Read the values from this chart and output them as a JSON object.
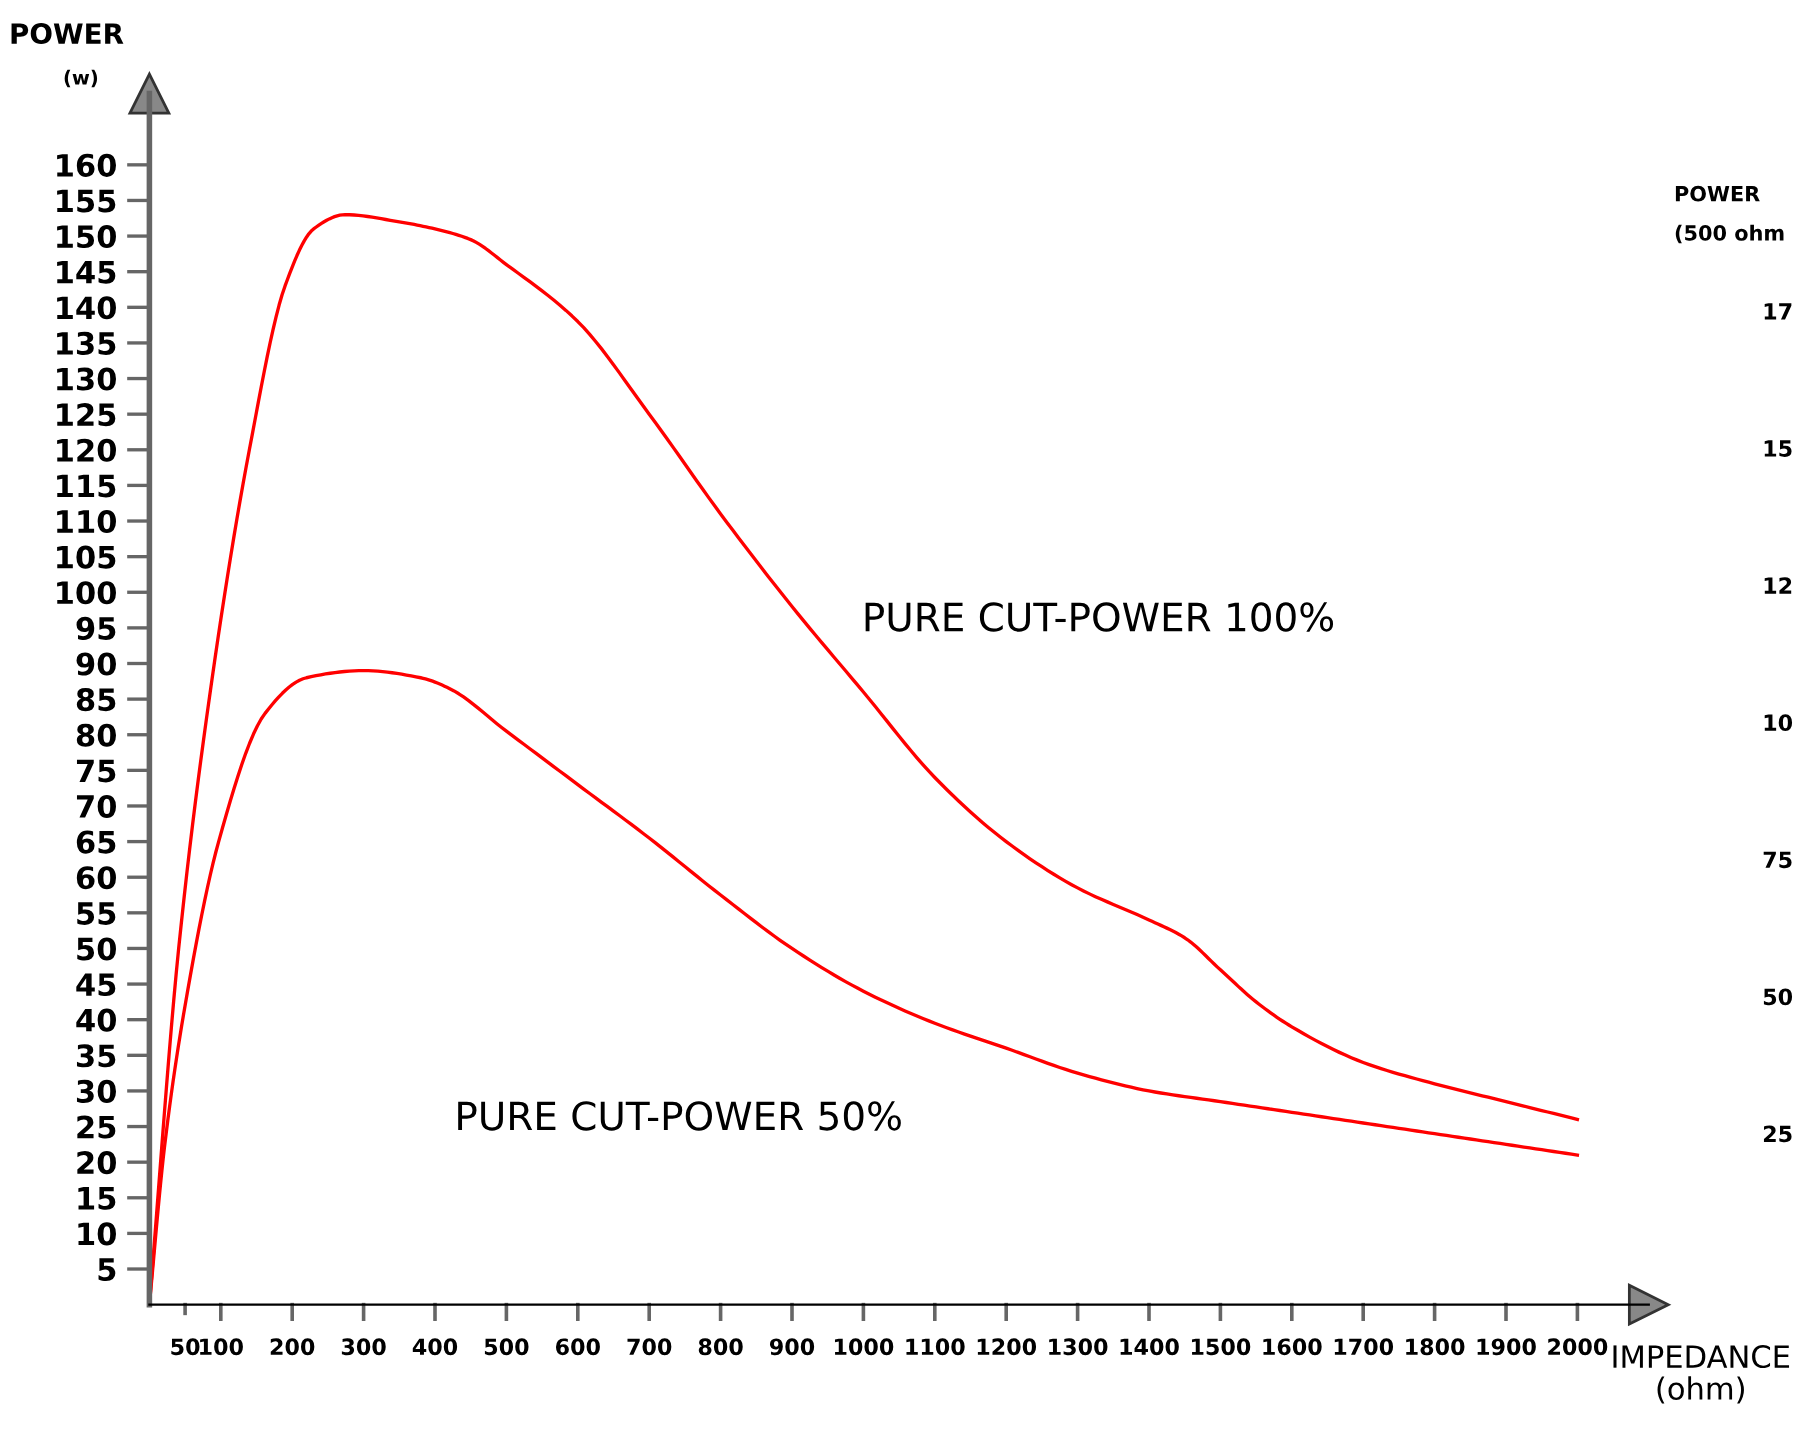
{
  "chart_data": [
    {
      "type": "line",
      "xlabel": "IMPEDANCE\n(ohm)",
      "ylabel": "POWER\n(w)",
      "xlim": [
        0,
        2100
      ],
      "ylim": [
        0,
        170
      ],
      "xticks": [
        50,
        100,
        200,
        300,
        400,
        500,
        600,
        700,
        800,
        900,
        1000,
        1100,
        1200,
        1300,
        1400,
        1500,
        1600,
        1700,
        1800,
        1900,
        2000
      ],
      "yticks": [
        5,
        10,
        15,
        20,
        25,
        30,
        35,
        40,
        45,
        50,
        55,
        60,
        65,
        70,
        75,
        80,
        85,
        90,
        95,
        100,
        105,
        110,
        115,
        120,
        125,
        130,
        135,
        140,
        145,
        150,
        155,
        160
      ],
      "grid": false,
      "legend": false,
      "marker": "none",
      "line_style": "solid",
      "series": [
        {
          "color": "#ff0000",
          "x": [
            0,
            41,
            88,
            140,
            190,
            230,
            274,
            350,
            400,
            450,
            500,
            600,
            700,
            800,
            900,
            1000,
            1100,
            1200,
            1300,
            1400,
            1450,
            1500,
            1550,
            1600,
            1700,
            1800,
            1900,
            2000
          ],
          "values": [
            0,
            50,
            88,
            120,
            143,
            151,
            153,
            152,
            151,
            149.5,
            146,
            138,
            125,
            111,
            98,
            86,
            74,
            65,
            58.5,
            54,
            51.5,
            47,
            42.5,
            39,
            34,
            31,
            28.5,
            26
          ]
        },
        {
          "color": "#ff0000",
          "x": [
            0,
            21,
            50,
            97,
            162,
            220,
            300,
            380,
            420,
            500,
            600,
            700,
            800,
            900,
            1000,
            1100,
            1200,
            1300,
            1400,
            1500,
            1600,
            1700,
            1800,
            1900,
            2000
          ],
          "values": [
            0,
            22,
            42,
            65,
            83,
            88,
            89,
            88,
            86.5,
            80.5,
            73,
            65.5,
            57.5,
            50,
            44,
            39.5,
            36,
            32.5,
            30,
            28.5,
            27,
            25.5,
            24,
            22.5,
            21
          ]
        }
      ],
      "annotations": [
        "PURE CUT-POWER 100%",
        "PURE CUT-POWER 50%"
      ]
    },
    {
      "type": "other",
      "ylabel": "POWER\n(500 ohm",
      "annotations": [
        "17",
        "15",
        "12",
        "10",
        "75",
        "50",
        "25"
      ]
    }
  ]
}
